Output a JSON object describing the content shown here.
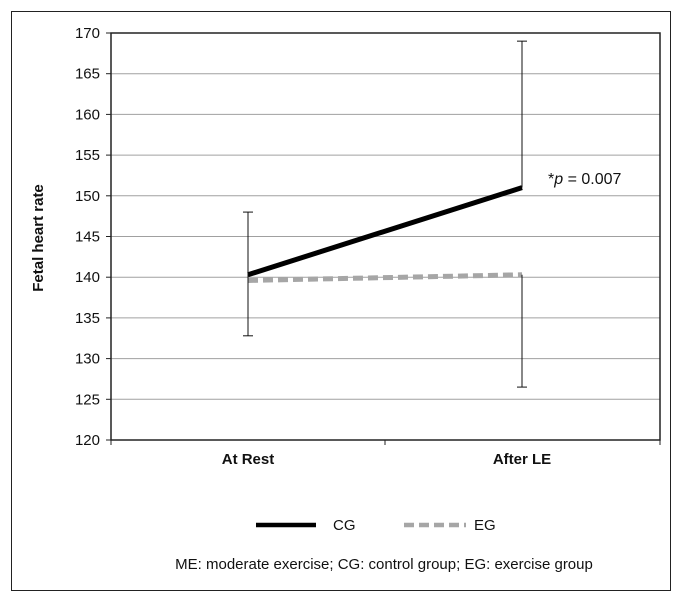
{
  "chart_data": {
    "type": "line",
    "ylabel": "Fetal heart rate",
    "xlabel": "",
    "categories": [
      "At Rest",
      "After LE"
    ],
    "ylim": [
      120,
      170
    ],
    "yticks": [
      120,
      125,
      130,
      135,
      140,
      145,
      150,
      155,
      160,
      165,
      170
    ],
    "grid": true,
    "series": [
      {
        "name": "CG",
        "values": [
          140.3,
          151.0
        ],
        "error_low": [
          132.8,
          null
        ],
        "error_high": [
          148.0,
          169.0
        ],
        "color": "#000000",
        "style": "solid"
      },
      {
        "name": "EG",
        "values": [
          139.6,
          140.3
        ],
        "error_low": [
          null,
          126.5
        ],
        "error_high": [
          null,
          null
        ],
        "color": "#a6a6a6",
        "style": "dashed"
      }
    ],
    "annotation": {
      "text_prefix": "*",
      "text_p": "p",
      "text_suffix": " = 0.007"
    },
    "legend_position": "bottom",
    "footnote": "ME: moderate exercise; CG: control group; EG: exercise group"
  }
}
